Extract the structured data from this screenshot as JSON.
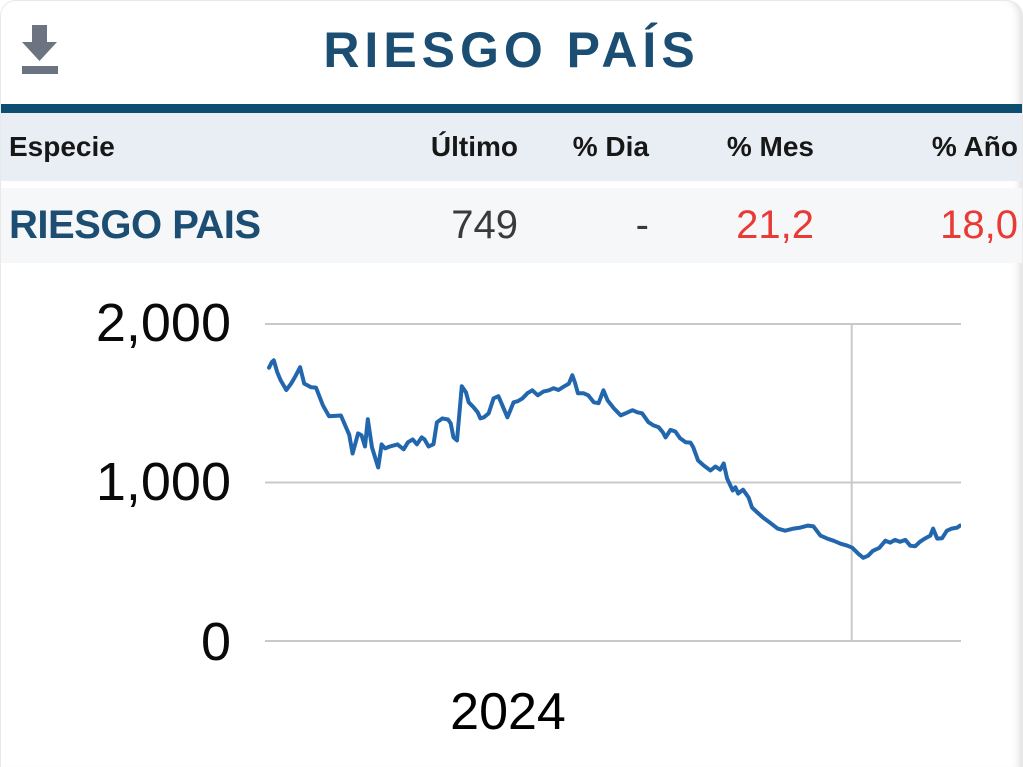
{
  "header": {
    "title": "RIESGO PAÍS",
    "download_icon": "download-icon"
  },
  "colors": {
    "accent_dark_blue": "#1b4e72",
    "teal_bar": "#0d4d70",
    "header_row_bg": "#e9eef5",
    "data_row_bg": "#f6f7f9",
    "negative_value": "#e93a35",
    "line": "#2267ad",
    "grid": "#c9c9c9",
    "icon_gray": "#6b7480"
  },
  "table": {
    "headers": [
      "Especie",
      "Último",
      "% Dia",
      "% Mes",
      "% Año"
    ],
    "rows": [
      {
        "especie": "RIESGO PAIS",
        "ultimo": "749",
        "dia": "-",
        "mes": "21,2",
        "ano": "18,0"
      }
    ]
  },
  "chart_data": {
    "type": "line",
    "title": "",
    "xlabel": "",
    "ylabel": "",
    "ylim": [
      0,
      2000
    ],
    "grid": true,
    "legend": "none",
    "yticks": [
      {
        "value": 2000,
        "label": "2,000"
      },
      {
        "value": 1000,
        "label": "1,000"
      },
      {
        "value": 0,
        "label": "0"
      }
    ],
    "xticks": [
      {
        "frac": 0.345,
        "label": "2024"
      }
    ],
    "vertical_gridlines_frac": [
      0.843
    ],
    "line_color": "#2267ad",
    "grid_color": "#c9c9c9",
    "series": [
      {
        "name": "RIESGO PAIS",
        "points": [
          [
            0.0,
            1720
          ],
          [
            0.004,
            1755
          ],
          [
            0.007,
            1766
          ],
          [
            0.012,
            1690
          ],
          [
            0.017,
            1640
          ],
          [
            0.025,
            1580
          ],
          [
            0.032,
            1620
          ],
          [
            0.038,
            1665
          ],
          [
            0.045,
            1723
          ],
          [
            0.051,
            1620
          ],
          [
            0.061,
            1597
          ],
          [
            0.068,
            1595
          ],
          [
            0.078,
            1484
          ],
          [
            0.087,
            1415
          ],
          [
            0.104,
            1420
          ],
          [
            0.116,
            1300
          ],
          [
            0.121,
            1182
          ],
          [
            0.129,
            1308
          ],
          [
            0.134,
            1295
          ],
          [
            0.139,
            1226
          ],
          [
            0.143,
            1396
          ],
          [
            0.149,
            1220
          ],
          [
            0.158,
            1094
          ],
          [
            0.163,
            1239
          ],
          [
            0.168,
            1214
          ],
          [
            0.175,
            1226
          ],
          [
            0.186,
            1239
          ],
          [
            0.195,
            1208
          ],
          [
            0.201,
            1252
          ],
          [
            0.208,
            1270
          ],
          [
            0.214,
            1239
          ],
          [
            0.221,
            1283
          ],
          [
            0.225,
            1270
          ],
          [
            0.231,
            1226
          ],
          [
            0.238,
            1240
          ],
          [
            0.243,
            1377
          ],
          [
            0.251,
            1402
          ],
          [
            0.259,
            1395
          ],
          [
            0.263,
            1371
          ],
          [
            0.267,
            1283
          ],
          [
            0.272,
            1264
          ],
          [
            0.279,
            1604
          ],
          [
            0.285,
            1566
          ],
          [
            0.289,
            1503
          ],
          [
            0.296,
            1472
          ],
          [
            0.302,
            1440
          ],
          [
            0.306,
            1402
          ],
          [
            0.311,
            1409
          ],
          [
            0.318,
            1434
          ],
          [
            0.325,
            1528
          ],
          [
            0.332,
            1541
          ],
          [
            0.338,
            1480
          ],
          [
            0.345,
            1409
          ],
          [
            0.35,
            1460
          ],
          [
            0.354,
            1503
          ],
          [
            0.36,
            1510
          ],
          [
            0.367,
            1528
          ],
          [
            0.374,
            1560
          ],
          [
            0.381,
            1578
          ],
          [
            0.389,
            1547
          ],
          [
            0.397,
            1570
          ],
          [
            0.405,
            1578
          ],
          [
            0.412,
            1591
          ],
          [
            0.419,
            1580
          ],
          [
            0.426,
            1600
          ],
          [
            0.434,
            1620
          ],
          [
            0.439,
            1673
          ],
          [
            0.443,
            1623
          ],
          [
            0.447,
            1560
          ],
          [
            0.455,
            1560
          ],
          [
            0.462,
            1547
          ],
          [
            0.47,
            1503
          ],
          [
            0.477,
            1497
          ],
          [
            0.484,
            1578
          ],
          [
            0.49,
            1515
          ],
          [
            0.499,
            1466
          ],
          [
            0.509,
            1421
          ],
          [
            0.516,
            1434
          ],
          [
            0.526,
            1453
          ],
          [
            0.533,
            1440
          ],
          [
            0.54,
            1434
          ],
          [
            0.549,
            1378
          ],
          [
            0.556,
            1359
          ],
          [
            0.564,
            1346
          ],
          [
            0.57,
            1314
          ],
          [
            0.574,
            1283
          ],
          [
            0.581,
            1330
          ],
          [
            0.588,
            1320
          ],
          [
            0.595,
            1277
          ],
          [
            0.603,
            1252
          ],
          [
            0.61,
            1250
          ],
          [
            0.614,
            1220
          ],
          [
            0.621,
            1138
          ],
          [
            0.629,
            1107
          ],
          [
            0.639,
            1075
          ],
          [
            0.646,
            1100
          ],
          [
            0.653,
            1080
          ],
          [
            0.658,
            1119
          ],
          [
            0.663,
            1025
          ],
          [
            0.671,
            950
          ],
          [
            0.675,
            970
          ],
          [
            0.679,
            931
          ],
          [
            0.686,
            955
          ],
          [
            0.694,
            906
          ],
          [
            0.699,
            843
          ],
          [
            0.707,
            811
          ],
          [
            0.715,
            780
          ],
          [
            0.725,
            748
          ],
          [
            0.736,
            711
          ],
          [
            0.747,
            698
          ],
          [
            0.759,
            711
          ],
          [
            0.769,
            717
          ],
          [
            0.78,
            730
          ],
          [
            0.788,
            725
          ],
          [
            0.798,
            667
          ],
          [
            0.808,
            648
          ],
          [
            0.817,
            635
          ],
          [
            0.827,
            616
          ],
          [
            0.837,
            604
          ],
          [
            0.844,
            591
          ],
          [
            0.853,
            553
          ],
          [
            0.86,
            528
          ],
          [
            0.867,
            541
          ],
          [
            0.874,
            572
          ],
          [
            0.883,
            590
          ],
          [
            0.892,
            635
          ],
          [
            0.899,
            623
          ],
          [
            0.906,
            640
          ],
          [
            0.913,
            628
          ],
          [
            0.921,
            640
          ],
          [
            0.928,
            604
          ],
          [
            0.935,
            600
          ],
          [
            0.942,
            628
          ],
          [
            0.949,
            648
          ],
          [
            0.957,
            667
          ],
          [
            0.961,
            711
          ],
          [
            0.967,
            648
          ],
          [
            0.974,
            650
          ],
          [
            0.981,
            698
          ],
          [
            0.988,
            711
          ],
          [
            0.996,
            717
          ],
          [
            1.0,
            730
          ]
        ]
      }
    ]
  }
}
